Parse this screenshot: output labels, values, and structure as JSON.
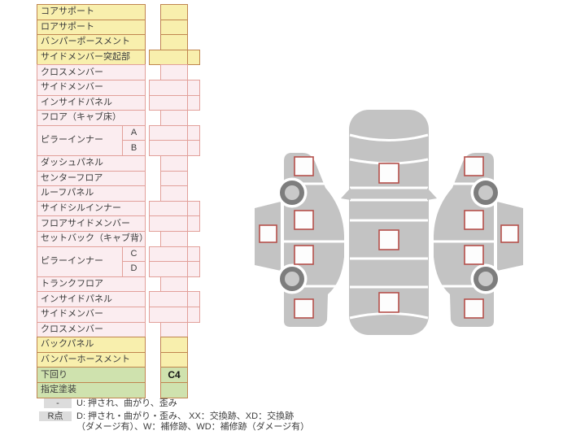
{
  "colors": {
    "yellow_fill": "#f8efad",
    "yellow_border": "#c0854f",
    "pink_fill": "#fbedf0",
    "pink_border": "#e2a09a",
    "green_fill": "#cfe2ae",
    "box_border": "#b5504b",
    "car_gray": "#c3c3c3",
    "wheel_dark": "#7d7d7d",
    "wheel_light": "#c9c9c9",
    "badge_bg": "#dcdcdc",
    "text": "#3c3c3c"
  },
  "table": {
    "rows": [
      {
        "label": "コアサポート",
        "color": "yellow",
        "cell": "single",
        "value": ""
      },
      {
        "label": "ロアサポート",
        "color": "yellow",
        "cell": "single",
        "value": ""
      },
      {
        "label": "バンパーポースメント",
        "color": "yellow",
        "cell": "single",
        "value": ""
      },
      {
        "label": "サイドメンバー突起部",
        "color": "yellow",
        "cell": "double",
        "value": ""
      },
      {
        "label": "クロスメンバー",
        "color": "pink",
        "cell": "single",
        "value": ""
      },
      {
        "label": "サイドメンバー",
        "color": "pink",
        "cell": "double",
        "value": ""
      },
      {
        "label": "インサイドパネル",
        "color": "pink",
        "cell": "double",
        "value": ""
      },
      {
        "label": "フロア（キャブ床）",
        "color": "pink",
        "cell": "single",
        "value": ""
      },
      {
        "label": "ピラーインナー",
        "color": "pink",
        "cell": "double",
        "sub": "A",
        "group": "start",
        "value": ""
      },
      {
        "label": "",
        "color": "pink",
        "cell": "double",
        "sub": "B",
        "group": "end",
        "value": ""
      },
      {
        "label": "ダッシュパネル",
        "color": "pink",
        "cell": "single",
        "value": ""
      },
      {
        "label": "センターフロア",
        "color": "pink",
        "cell": "single",
        "value": ""
      },
      {
        "label": "ルーフパネル",
        "color": "pink",
        "cell": "single",
        "value": ""
      },
      {
        "label": "サイドシルインナー",
        "color": "pink",
        "cell": "double",
        "value": ""
      },
      {
        "label": "フロアサイドメンバー",
        "color": "pink",
        "cell": "double",
        "value": ""
      },
      {
        "label": "セットバック（キャブ背）",
        "color": "pink",
        "cell": "single",
        "value": ""
      },
      {
        "label": "ピラーインナー",
        "color": "pink",
        "cell": "double",
        "sub": "C",
        "group": "start",
        "value": ""
      },
      {
        "label": "",
        "color": "pink",
        "cell": "double",
        "sub": "D",
        "group": "end",
        "value": ""
      },
      {
        "label": "トランクフロア",
        "color": "pink",
        "cell": "single",
        "value": ""
      },
      {
        "label": "インサイドパネル",
        "color": "pink",
        "cell": "double",
        "value": ""
      },
      {
        "label": "サイドメンバー",
        "color": "pink",
        "cell": "double",
        "value": ""
      },
      {
        "label": "クロスメンバー",
        "color": "pink",
        "cell": "single",
        "value": ""
      },
      {
        "label": "バックパネル",
        "color": "yellow",
        "cell": "single",
        "value": ""
      },
      {
        "label": "バンパーホースメント",
        "color": "yellow",
        "cell": "single",
        "value": ""
      },
      {
        "label": "下回り",
        "color": "green",
        "cell": "single",
        "value": "C4"
      },
      {
        "label": "指定塗装",
        "color": "green",
        "cell": "single",
        "value": ""
      }
    ]
  },
  "legend": {
    "rows": [
      {
        "badge": "-",
        "lines": [
          "U: 押され、曲がり、歪み",
          ""
        ]
      },
      {
        "badge": "R点",
        "lines": [
          "D: 押され・曲がり・歪み、 XX：交換跡、XD：交換跡",
          "（ダメージ有）、W：補修跡、WD：補修跡（ダメージ有）"
        ]
      }
    ]
  }
}
